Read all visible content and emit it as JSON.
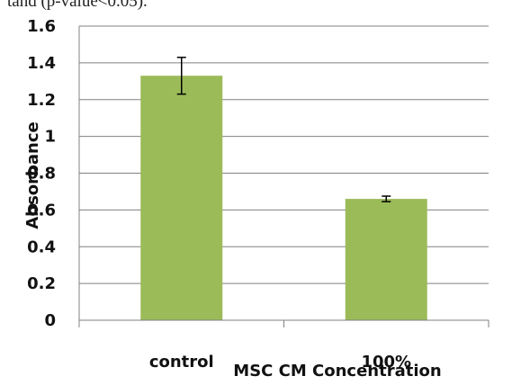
{
  "header_text": "tand (p-value<0.05).",
  "chart_data": {
    "type": "bar",
    "title": "",
    "xlabel": "MSC CM Concentration",
    "ylabel": "Absorbance",
    "categories": [
      "control",
      "100%"
    ],
    "values": [
      1.33,
      0.66
    ],
    "error": [
      0.1,
      0.015
    ],
    "ylim": [
      0,
      1.6
    ],
    "yticks": [
      0,
      0.2,
      0.4,
      0.6,
      0.8,
      1,
      1.2,
      1.4,
      1.6
    ],
    "ytick_labels": [
      "0",
      "0.2",
      "0.4",
      "0.6",
      "0.8",
      "1",
      "1.2",
      "1.4",
      "1.6"
    ],
    "grid": true,
    "legend": "none",
    "colors": {
      "bar": "#9bbb59",
      "grid": "#808080",
      "axis": "#808080",
      "error_bar": "#000000"
    }
  }
}
